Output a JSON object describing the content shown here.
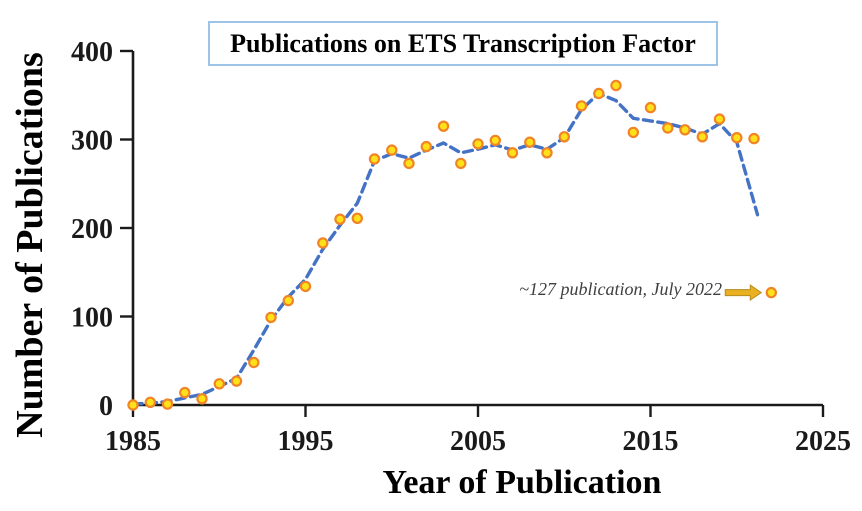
{
  "chart_data": {
    "type": "scatter",
    "title": "Publications on ETS Transcription Factor",
    "xlabel": "Year of Publication",
    "ylabel": "Number of Publications",
    "xlim": [
      1985,
      2025
    ],
    "ylim": [
      0,
      400
    ],
    "x_ticks": [
      1985,
      1995,
      2005,
      2015,
      2025
    ],
    "y_ticks": [
      0,
      100,
      200,
      300,
      400
    ],
    "grid": false,
    "legend": false,
    "series": {
      "points": {
        "x": [
          1985,
          1986,
          1987,
          1988,
          1989,
          1990,
          1991,
          1992,
          1993,
          1994,
          1995,
          1996,
          1997,
          1998,
          1999,
          2000,
          2001,
          2002,
          2003,
          2004,
          2005,
          2006,
          2007,
          2008,
          2009,
          2010,
          2011,
          2012,
          2013,
          2014,
          2015,
          2016,
          2017,
          2018,
          2019,
          2020,
          2021,
          2022
        ],
        "y": [
          0,
          3,
          1,
          14,
          7,
          24,
          27,
          48,
          99,
          118,
          134,
          183,
          210,
          211,
          278,
          288,
          273,
          292,
          315,
          273,
          295,
          299,
          285,
          297,
          285,
          303,
          338,
          352,
          361,
          308,
          336,
          313,
          311,
          303,
          323,
          302,
          301,
          127
        ]
      },
      "trend": [
        [
          1985,
          1
        ],
        [
          1986,
          2
        ],
        [
          1987,
          4
        ],
        [
          1988,
          8
        ],
        [
          1989,
          12
        ],
        [
          1990,
          21
        ],
        [
          1991,
          30
        ],
        [
          1992,
          62
        ],
        [
          1993,
          96
        ],
        [
          1994,
          122
        ],
        [
          1995,
          142
        ],
        [
          1996,
          176
        ],
        [
          1997,
          203
        ],
        [
          1998,
          228
        ],
        [
          1999,
          276
        ],
        [
          2000,
          284
        ],
        [
          2001,
          279
        ],
        [
          2002,
          288
        ],
        [
          2003,
          296
        ],
        [
          2004,
          285
        ],
        [
          2005,
          289
        ],
        [
          2006,
          294
        ],
        [
          2007,
          288
        ],
        [
          2008,
          294
        ],
        [
          2009,
          289
        ],
        [
          2010,
          302
        ],
        [
          2011,
          334
        ],
        [
          2012,
          352
        ],
        [
          2013,
          344
        ],
        [
          2014,
          324
        ],
        [
          2015,
          321
        ],
        [
          2016,
          318
        ],
        [
          2017,
          313
        ],
        [
          2018,
          306
        ],
        [
          2019,
          318
        ],
        [
          2020,
          297
        ],
        [
          2021.2,
          215
        ]
      ]
    },
    "annotation": {
      "text": "~127 publication, July 2022",
      "icon": "right-arrow-icon",
      "target_year": 2022,
      "target_value": 127
    },
    "colors": {
      "axis": "#1a1a1a",
      "trend": "#4472C4",
      "point_fill": "#FFE11A",
      "point_stroke": "#F08426",
      "title_box_border": "#9DC3E6",
      "annotation_text": "#3f3f3f",
      "arrow_fill": "#E9B021",
      "arrow_stroke": "#B58B1B"
    }
  }
}
